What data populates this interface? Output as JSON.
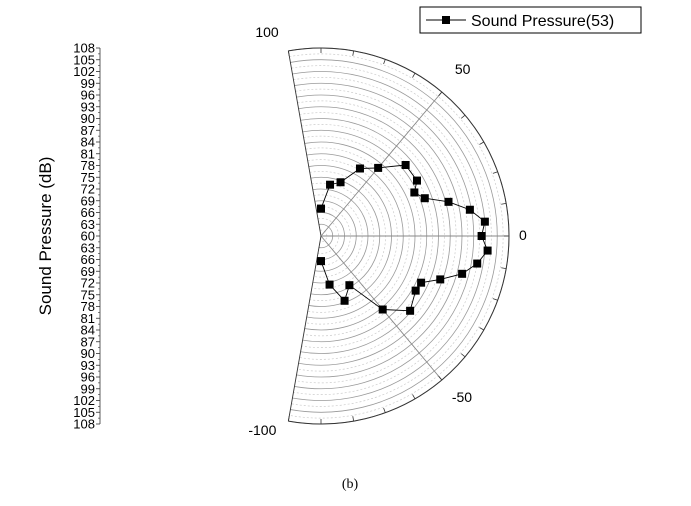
{
  "chart_data": {
    "type": "polar-scatter-line",
    "legend": {
      "label": "Sound Pressure(53)",
      "placement": "top-right",
      "marker": "square"
    },
    "radial_axis": {
      "label": "Sound Pressure (dB)",
      "range": [
        60,
        108
      ],
      "tick_labels": [
        "108",
        "105",
        "102",
        "99",
        "96",
        "93",
        "90",
        "87",
        "84",
        "81",
        "78",
        "75",
        "72",
        "69",
        "66",
        "63",
        "60",
        "63",
        "66",
        "69",
        "72",
        "75",
        "78",
        "81",
        "84",
        "87",
        "90",
        "93",
        "96",
        "99",
        "102",
        "105",
        "108"
      ]
    },
    "angular_axis": {
      "range": [
        -100,
        100
      ],
      "tick_labels": [
        "100",
        "50",
        "0",
        "-50",
        "-100"
      ],
      "tick_values": [
        100,
        50,
        0,
        -50,
        -100
      ]
    },
    "grid": true,
    "series": [
      {
        "name": "Sound Pressure(53)",
        "color": "#000000",
        "points": [
          {
            "angle": 90,
            "value": 67
          },
          {
            "angle": 80,
            "value": 73.3
          },
          {
            "angle": 70,
            "value": 74.6
          },
          {
            "angle": 60,
            "value": 79.9
          },
          {
            "angle": 50,
            "value": 82.7
          },
          {
            "angle": 40,
            "value": 88.2
          },
          {
            "angle": 30,
            "value": 88.3
          },
          {
            "angle": 25,
            "value": 86.3
          },
          {
            "angle": 20,
            "value": 88.2
          },
          {
            "angle": 15,
            "value": 93.7
          },
          {
            "angle": 10,
            "value": 98.6
          },
          {
            "angle": 5,
            "value": 102
          },
          {
            "angle": 0,
            "value": 101
          },
          {
            "angle": -5,
            "value": 102.7
          },
          {
            "angle": -10,
            "value": 100.5
          },
          {
            "angle": -15,
            "value": 97.3
          },
          {
            "angle": -20,
            "value": 92.4
          },
          {
            "angle": -25,
            "value": 88.2
          },
          {
            "angle": -30,
            "value": 87.9
          },
          {
            "angle": -40,
            "value": 89.7
          },
          {
            "angle": -50,
            "value": 84.5
          },
          {
            "angle": -60,
            "value": 74.5
          },
          {
            "angle": -70,
            "value": 77.6
          },
          {
            "angle": -80,
            "value": 72.6
          },
          {
            "angle": -90,
            "value": 66.4
          }
        ]
      }
    ],
    "caption": "(b)"
  }
}
